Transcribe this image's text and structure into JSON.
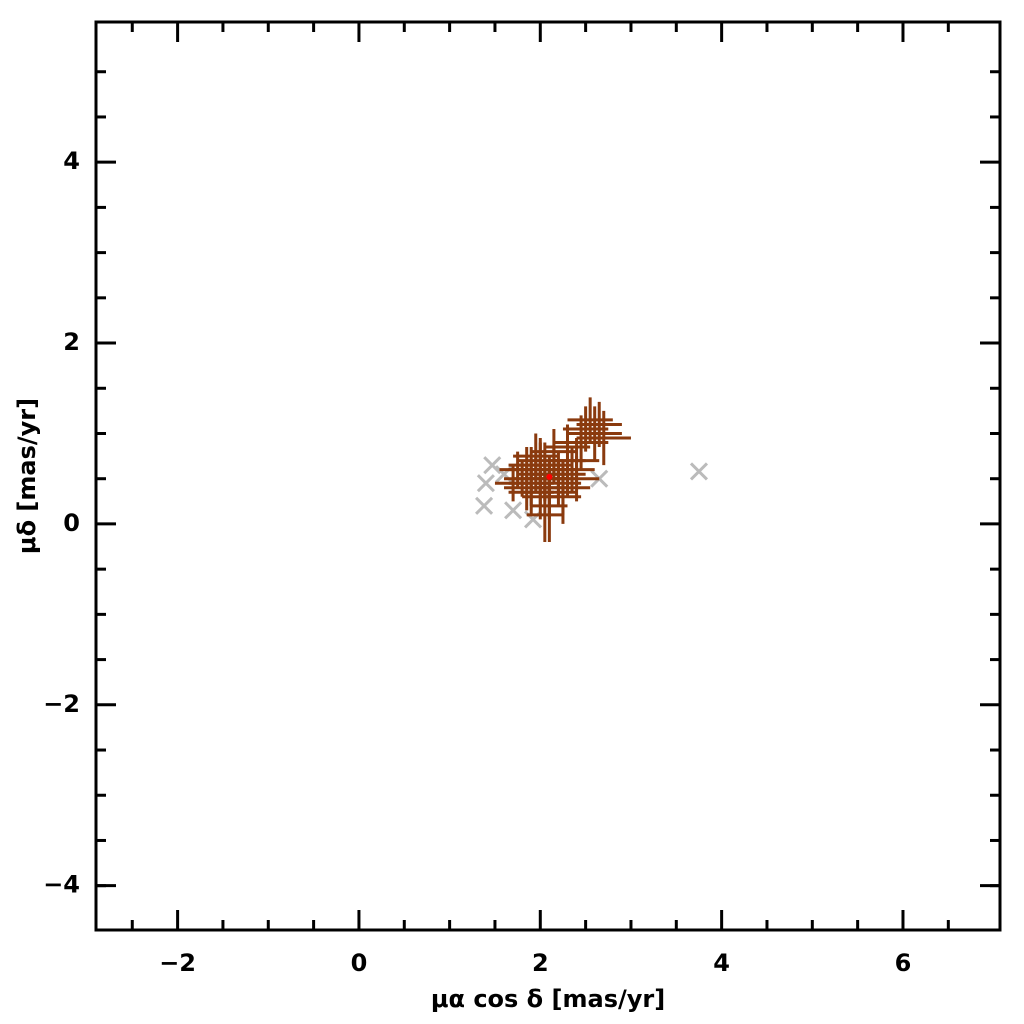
{
  "chart_data": {
    "type": "scatter",
    "x_label": "μα cos δ [mas/yr]",
    "y_label": "μδ [mas/yr]",
    "xlim": [
      -2.9,
      7.07
    ],
    "ylim": [
      -4.49,
      5.55
    ],
    "xticks": [
      {
        "value": -2,
        "label": "−2"
      },
      0,
      2,
      4,
      6
    ],
    "yticks": [
      {
        "value": -4,
        "label": "−4"
      },
      {
        "value": -2,
        "label": "−2"
      },
      0,
      2,
      4
    ],
    "x_minor_ticks": [
      -2.5,
      -1.5,
      -1,
      -0.5,
      0.5,
      1,
      1.5,
      2.5,
      3,
      3.5,
      4.5,
      5,
      5.5,
      6.5
    ],
    "y_minor_ticks": [
      -4,
      -3.5,
      -3,
      -2.5,
      -1.5,
      -1,
      -0.5,
      0.5,
      1,
      1.5,
      2.5,
      3,
      3.5,
      4.5,
      5
    ],
    "series": [
      {
        "color": "#bbbbbb",
        "marker": "x",
        "x": [
          1.4,
          1.38,
          1.47,
          1.7,
          1.92,
          2.65,
          3.75,
          1.6
        ],
        "y": [
          0.45,
          0.2,
          0.65,
          0.15,
          0.05,
          0.5,
          0.58,
          0.55
        ]
      },
      {
        "color": "#8a3a0e",
        "marker": "errorbar",
        "x": [
          2.05,
          2.2,
          1.9,
          2.3,
          2.1,
          1.85,
          2.4,
          2.0,
          2.15,
          1.95,
          2.25,
          1.8,
          2.35,
          2.1,
          2.0,
          2.45,
          1.75,
          2.2,
          2.05,
          1.9,
          2.6,
          2.5,
          2.7,
          2.55,
          2.3,
          2.15,
          1.95,
          2.0,
          2.25,
          1.85,
          2.1,
          2.4,
          1.7,
          2.05,
          2.3,
          2.65,
          2.2,
          1.9,
          2.1,
          2.0
        ],
        "y": [
          0.5,
          0.6,
          0.45,
          0.55,
          0.35,
          0.65,
          0.7,
          0.3,
          0.8,
          0.55,
          0.4,
          0.5,
          0.6,
          0.2,
          0.7,
          0.9,
          0.6,
          0.45,
          0.1,
          0.35,
          1.0,
          1.05,
          0.95,
          1.15,
          0.85,
          0.65,
          0.75,
          0.5,
          0.3,
          0.4,
          0.55,
          0.5,
          0.45,
          0.6,
          0.7,
          1.1,
          0.5,
          0.6,
          0.4,
          0.65
        ],
        "xerr": [
          0.25,
          0.2,
          0.25,
          0.2,
          0.3,
          0.2,
          0.25,
          0.2,
          0.25,
          0.2,
          0.3,
          0.2,
          0.25,
          0.2,
          0.25,
          0.3,
          0.2,
          0.25,
          0.2,
          0.25,
          0.3,
          0.25,
          0.3,
          0.25,
          0.25,
          0.2,
          0.25,
          0.3,
          0.2,
          0.25,
          0.2,
          0.25,
          0.2,
          0.3,
          0.2,
          0.25,
          0.2,
          0.25,
          0.2,
          0.25
        ],
        "yerr": [
          0.25,
          0.2,
          0.25,
          0.25,
          0.3,
          0.2,
          0.25,
          0.25,
          0.25,
          0.2,
          0.3,
          0.2,
          0.25,
          0.4,
          0.25,
          0.3,
          0.2,
          0.25,
          0.3,
          0.25,
          0.3,
          0.25,
          0.3,
          0.25,
          0.25,
          0.2,
          0.25,
          0.3,
          0.3,
          0.25,
          0.2,
          0.25,
          0.2,
          0.3,
          0.2,
          0.25,
          0.2,
          0.25,
          0.3,
          0.25
        ]
      },
      {
        "color": "#ff0000",
        "marker": "dot",
        "x": [
          2.1
        ],
        "y": [
          0.52
        ]
      }
    ]
  }
}
